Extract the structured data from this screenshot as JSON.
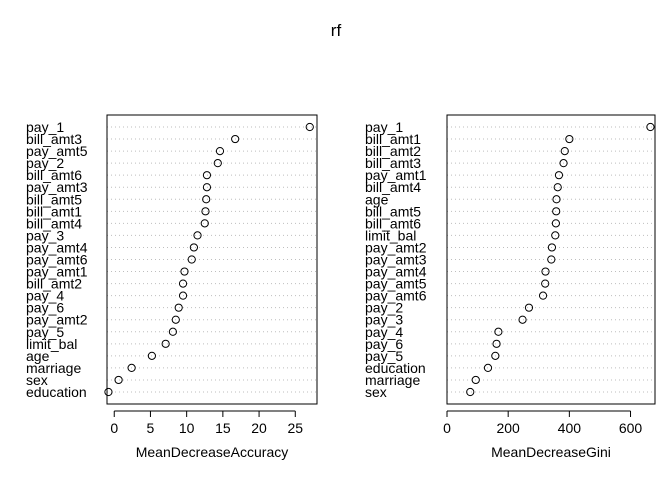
{
  "title": "rf",
  "chart_data": [
    {
      "type": "scatter",
      "subtype": "dotchart",
      "xlabel": "MeanDecreaseAccuracy",
      "xlim": [
        -1,
        28
      ],
      "xticks": [
        0,
        5,
        10,
        15,
        20,
        25
      ],
      "grid": "dotted-horizontal",
      "categories": [
        "pay_1",
        "bill_amt3",
        "pay_amt5",
        "pay_2",
        "bill_amt6",
        "pay_amt3",
        "bill_amt5",
        "bill_amt1",
        "bill_amt4",
        "pay_3",
        "pay_amt4",
        "pay_amt6",
        "pay_amt1",
        "bill_amt2",
        "pay_4",
        "pay_6",
        "pay_amt2",
        "pay_5",
        "limit_bal",
        "age",
        "marriage",
        "sex",
        "education"
      ],
      "values": [
        27.0,
        16.7,
        14.6,
        14.3,
        12.8,
        12.8,
        12.7,
        12.6,
        12.5,
        11.5,
        11.0,
        10.7,
        9.7,
        9.5,
        9.5,
        8.9,
        8.5,
        8.1,
        7.1,
        5.2,
        2.4,
        0.6,
        -0.8
      ]
    },
    {
      "type": "scatter",
      "subtype": "dotchart",
      "xlabel": "MeanDecreaseGini",
      "xlim": [
        0,
        680
      ],
      "xticks": [
        0,
        200,
        400,
        600
      ],
      "grid": "dotted-horizontal",
      "categories": [
        "pay_1",
        "bill_amt1",
        "bill_amt2",
        "bill_amt3",
        "pay_amt1",
        "bill_amt4",
        "age",
        "bill_amt5",
        "bill_amt6",
        "limit_bal",
        "pay_amt2",
        "pay_amt3",
        "pay_amt4",
        "pay_amt5",
        "pay_amt6",
        "pay_2",
        "pay_3",
        "pay_4",
        "pay_6",
        "pay_5",
        "education",
        "marriage",
        "sex"
      ],
      "values": [
        665,
        400,
        385,
        381,
        366,
        362,
        358,
        357,
        356,
        354,
        343,
        341,
        322,
        321,
        314,
        268,
        247,
        168,
        162,
        158,
        134,
        94,
        76
      ]
    }
  ]
}
